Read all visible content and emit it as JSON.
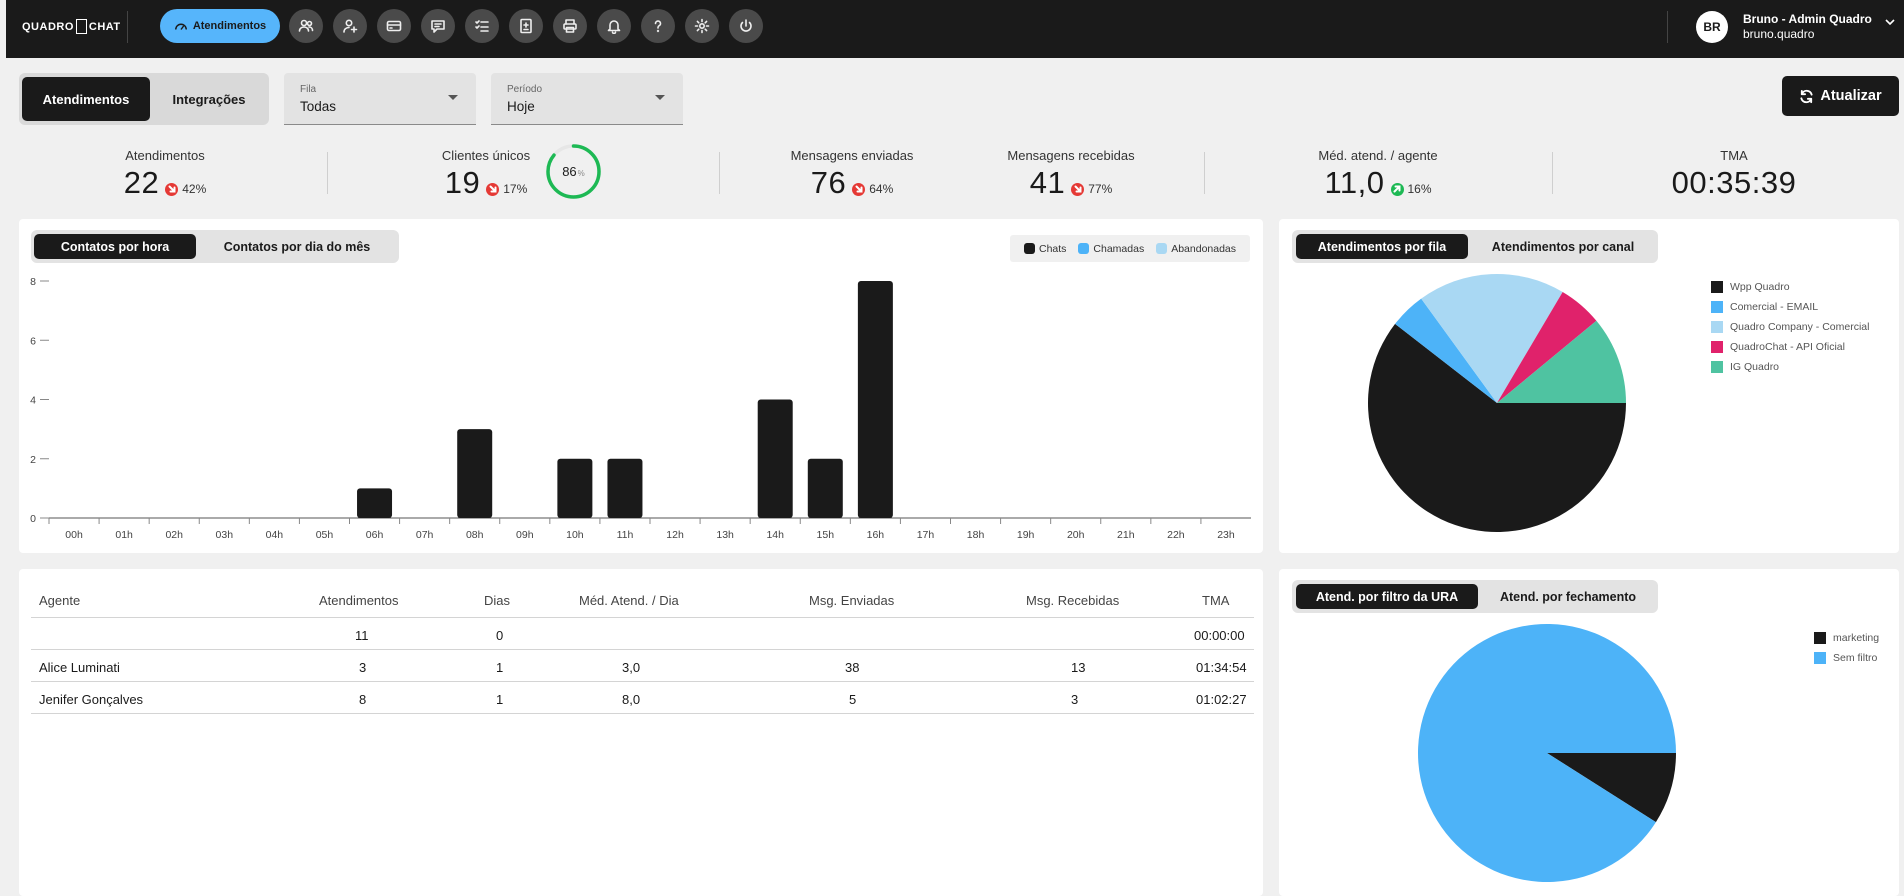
{
  "brand": {
    "logo_left": "QUADRO",
    "logo_right": "CHAT"
  },
  "nav": {
    "primary_label": "Atendimentos",
    "icons": [
      "contacts-icon",
      "add-user-icon",
      "queue-icon",
      "chat-bubble-icon",
      "task-list-icon",
      "report-icon",
      "print-icon",
      "bell-icon",
      "help-icon",
      "gear-icon",
      "power-icon"
    ]
  },
  "user": {
    "initials": "BR",
    "name": "Bruno - Admin Quadro",
    "login": "bruno.quadro"
  },
  "controls": {
    "tab_active": "Atendimentos",
    "tab_inactive": "Integrações",
    "fila_label": "Fila",
    "fila_value": "Todas",
    "periodo_label": "Período",
    "periodo_value": "Hoje",
    "refresh_label": "Atualizar"
  },
  "stats": {
    "atendimentos": {
      "label": "Atendimentos",
      "value": "22",
      "delta": "42%",
      "trend": "down"
    },
    "clientes": {
      "label": "Clientes únicos",
      "value": "19",
      "delta": "17%",
      "trend": "down",
      "ring_value": "86",
      "ring_unit": "%",
      "ring_fraction": 0.86
    },
    "enviadas": {
      "label": "Mensagens enviadas",
      "value": "76",
      "delta": "64%",
      "trend": "down"
    },
    "recebidas": {
      "label": "Mensagens recebidas",
      "value": "41",
      "delta": "77%",
      "trend": "down"
    },
    "media": {
      "label": "Méd. atend. / agente",
      "value": "11,0",
      "delta": "16%",
      "trend": "up"
    },
    "tma": {
      "label": "TMA",
      "value": "00:35:39"
    }
  },
  "bar_panel": {
    "tab_active": "Contatos por hora",
    "tab_inactive": "Contatos por dia do mês",
    "legend": [
      {
        "label": "Chats",
        "color": "#1a1a1a"
      },
      {
        "label": "Chamadas",
        "color": "#4db3f8"
      },
      {
        "label": "Abandonadas",
        "color": "#a9d8f3"
      }
    ]
  },
  "pie_panel_top": {
    "tab_active": "Atendimentos por fila",
    "tab_inactive": "Atendimentos por canal"
  },
  "pie_panel_bottom": {
    "tab_active": "Atend. por filtro da URA",
    "tab_inactive": "Atend. por fechamento"
  },
  "table": {
    "headers": [
      "Agente",
      "Atendimentos",
      "Dias",
      "Méd. Atend. / Dia",
      "Msg. Enviadas",
      "Msg. Recebidas",
      "TMA"
    ],
    "rows": [
      [
        "",
        "11",
        "0",
        "",
        "",
        "",
        "00:00:00"
      ],
      [
        "Alice Luminati",
        "3",
        "1",
        "3,0",
        "38",
        "13",
        "01:34:54"
      ],
      [
        "Jenifer Gonçalves",
        "8",
        "1",
        "8,0",
        "5",
        "3",
        "01:02:27"
      ]
    ]
  },
  "chart_data": [
    {
      "type": "bar",
      "categories": [
        "00h",
        "01h",
        "02h",
        "03h",
        "04h",
        "05h",
        "06h",
        "07h",
        "08h",
        "09h",
        "10h",
        "11h",
        "12h",
        "13h",
        "14h",
        "15h",
        "16h",
        "17h",
        "18h",
        "19h",
        "20h",
        "21h",
        "22h",
        "23h"
      ],
      "series": [
        {
          "name": "Chats",
          "color": "#1a1a1a",
          "values": [
            0,
            0,
            0,
            0,
            0,
            0,
            1,
            0,
            3,
            0,
            2,
            2,
            0,
            0,
            4,
            2,
            8,
            0,
            0,
            0,
            0,
            0,
            0,
            0
          ]
        },
        {
          "name": "Chamadas",
          "color": "#4db3f8",
          "values": [
            0,
            0,
            0,
            0,
            0,
            0,
            0,
            0,
            0,
            0,
            0,
            0,
            0,
            0,
            0,
            0,
            0,
            0,
            0,
            0,
            0,
            0,
            0,
            0
          ]
        },
        {
          "name": "Abandonadas",
          "color": "#a9d8f3",
          "values": [
            0,
            0,
            0,
            0,
            0,
            0,
            0,
            0,
            0,
            0,
            0,
            0,
            0,
            0,
            0,
            0,
            0,
            0,
            0,
            0,
            0,
            0,
            0,
            0
          ]
        }
      ],
      "yticks": [
        "0",
        "2",
        "4",
        "6",
        "8"
      ],
      "ylim": [
        0,
        8
      ],
      "title": "",
      "xlabel": "",
      "ylabel": "",
      "legend": "top-right"
    },
    {
      "type": "pie",
      "labels": [
        "Wpp Quadro",
        "Comercial - EMAIL",
        "Quadro Company - Comercial",
        "QuadroChat - API Oficial",
        "IG Quadro"
      ],
      "values": [
        60.5,
        4.5,
        18.5,
        5.5,
        11
      ],
      "colors": [
        "#1a1a1a",
        "#4db3f8",
        "#a9d8f3",
        "#e0226b",
        "#4fc3a1"
      ],
      "legend": "right"
    },
    {
      "type": "pie",
      "labels": [
        "marketing",
        "Sem filtro"
      ],
      "values": [
        9,
        91
      ],
      "colors": [
        "#1a1a1a",
        "#4db3f8"
      ],
      "legend": "right"
    }
  ]
}
